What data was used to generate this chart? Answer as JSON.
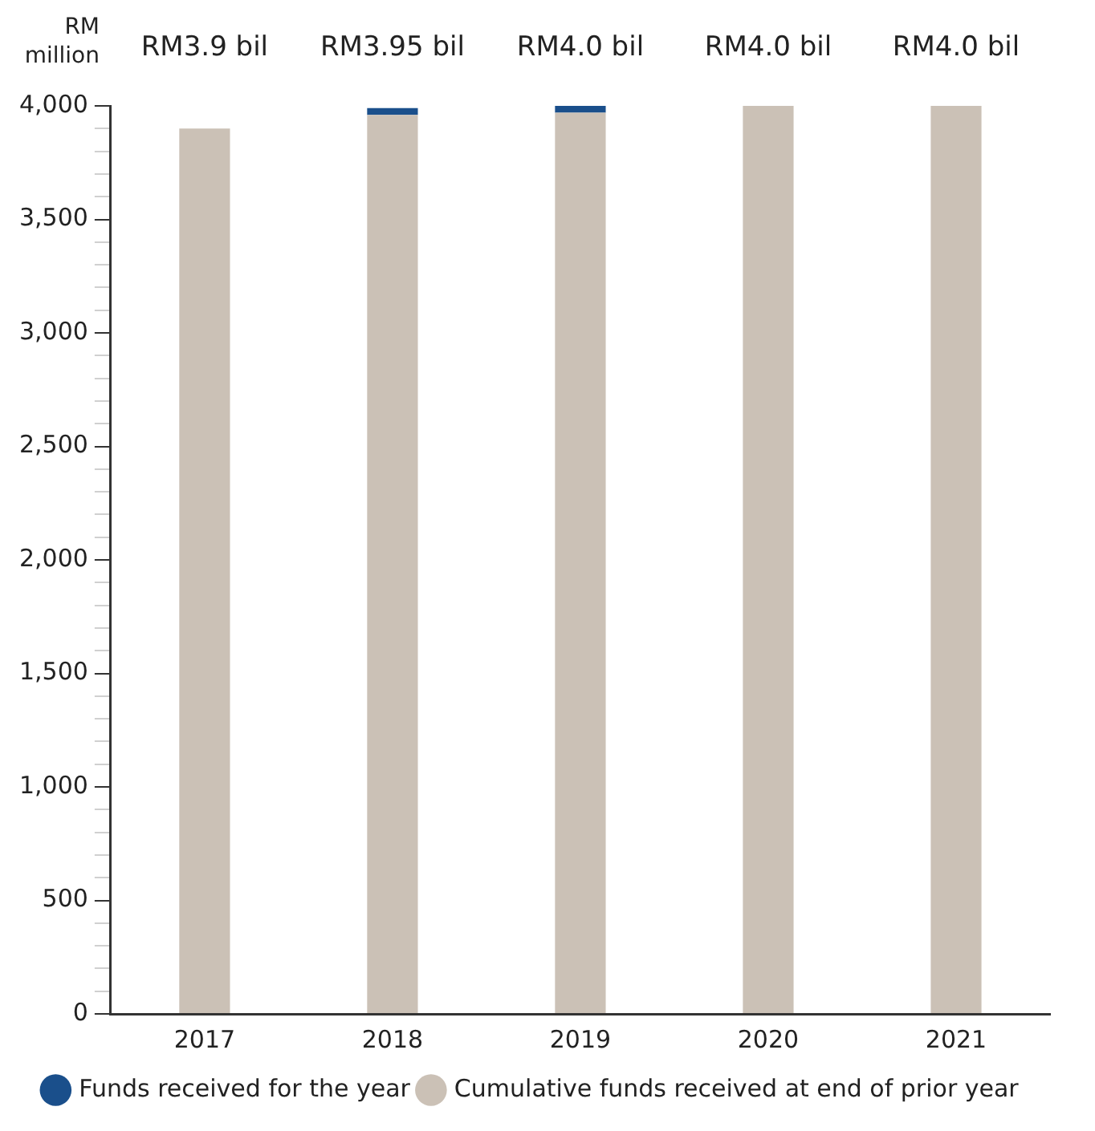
{
  "chart_data": {
    "type": "bar",
    "stacked": true,
    "ylabel": "RM million",
    "categories": [
      "2017",
      "2018",
      "2019",
      "2020",
      "2021"
    ],
    "series": [
      {
        "name": "Cumulative funds received at end of prior year",
        "color": "#cbc1b6",
        "values": [
          3900,
          3960,
          3970,
          4000,
          4000
        ]
      },
      {
        "name": "Funds received for the year",
        "color": "#1a4f8b",
        "values": [
          0,
          30,
          30,
          0,
          0
        ]
      }
    ],
    "totals": [
      "RM3.9 bil",
      "RM3.95 bil",
      "RM4.0 bil",
      "RM4.0 bil",
      "RM4.0 bil"
    ],
    "ylim": [
      0,
      4000
    ],
    "yticks": [
      0,
      {
        "value": 100,
        "label": null
      },
      {
        "value": 200,
        "label": null
      },
      {
        "value": 300,
        "label": null
      },
      {
        "value": 400,
        "label": null
      },
      500,
      {
        "value": 600,
        "label": null
      },
      {
        "value": 700,
        "label": null
      },
      {
        "value": 800,
        "label": null
      },
      {
        "value": 900,
        "label": null
      },
      "1,000",
      {
        "value": 1100,
        "label": null
      },
      {
        "value": 1200,
        "label": null
      },
      {
        "value": 1300,
        "label": null
      },
      {
        "value": 1400,
        "label": null
      },
      {
        "value": 1500,
        "label": "1,500"
      },
      {
        "value": 1600,
        "label": null
      },
      {
        "value": 1700,
        "label": null
      },
      {
        "value": 1800,
        "label": null
      },
      {
        "value": 1900,
        "label": null
      },
      {
        "value": 2000,
        "label": "2,000"
      },
      {
        "value": 2100,
        "label": null
      },
      {
        "value": 2200,
        "label": null
      },
      {
        "value": 2300,
        "label": null
      },
      {
        "value": 2400,
        "label": null
      },
      {
        "value": 2500,
        "label": "2,500"
      },
      {
        "value": 2600,
        "label": null
      },
      {
        "value": 2700,
        "label": null
      },
      {
        "value": 2800,
        "label": null
      },
      {
        "value": 2900,
        "label": null
      },
      {
        "value": 3000,
        "label": "3,000"
      },
      {
        "value": 3100,
        "label": null
      },
      {
        "value": 3200,
        "label": null
      },
      {
        "value": 3300,
        "label": null
      },
      {
        "value": 3400,
        "label": null
      },
      {
        "value": 3500,
        "label": "3,500"
      },
      {
        "value": 3600,
        "label": null
      },
      {
        "value": 3700,
        "label": null
      },
      {
        "value": 3800,
        "label": null
      },
      {
        "value": 3900,
        "label": null
      },
      {
        "value": 4000,
        "label": "4,000"
      }
    ],
    "grid": false,
    "legend": "bottom"
  }
}
